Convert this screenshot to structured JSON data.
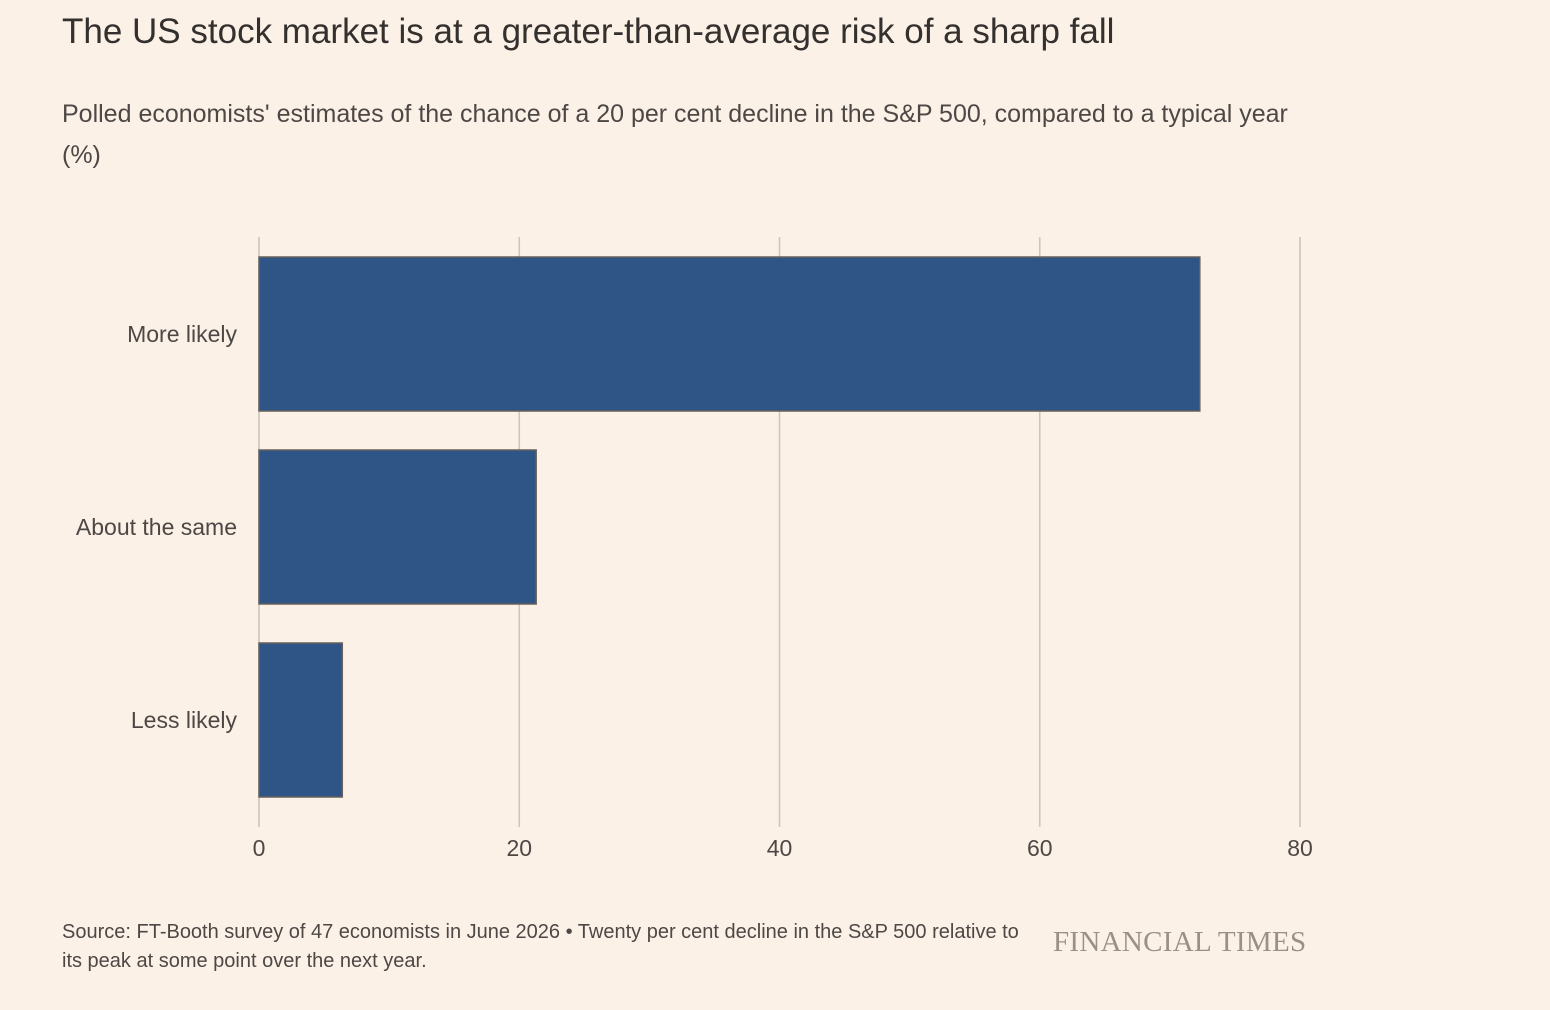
{
  "title": "The US stock market is at a greater-than-average risk of a sharp fall",
  "subtitle": "Polled economists' estimates of the chance of a 20 per cent decline in the S&P 500, compared to a typical year (%)",
  "source": "Source: FT-Booth survey of 47 economists in June 2026 • Twenty per cent decline in the S&P 500 relative to its peak at some point over the next year.",
  "logo_text": "FINANCIAL TIMES",
  "colors": {
    "background": "#fcf1e7",
    "bar": "#2f5486",
    "bar_stroke": "#66605c",
    "grid": "#cdc6be",
    "text": "#33302e"
  },
  "chart_data": {
    "type": "bar",
    "orientation": "horizontal",
    "categories": [
      "More likely",
      "About the same",
      "Less likely"
    ],
    "values": [
      72.3,
      21.3,
      6.4
    ],
    "xlim": [
      0,
      80
    ],
    "xticks": [
      0,
      20,
      40,
      60,
      80
    ],
    "grid": true,
    "title": "The US stock market is at a greater-than-average risk of a sharp fall",
    "xlabel": "",
    "ylabel": ""
  }
}
